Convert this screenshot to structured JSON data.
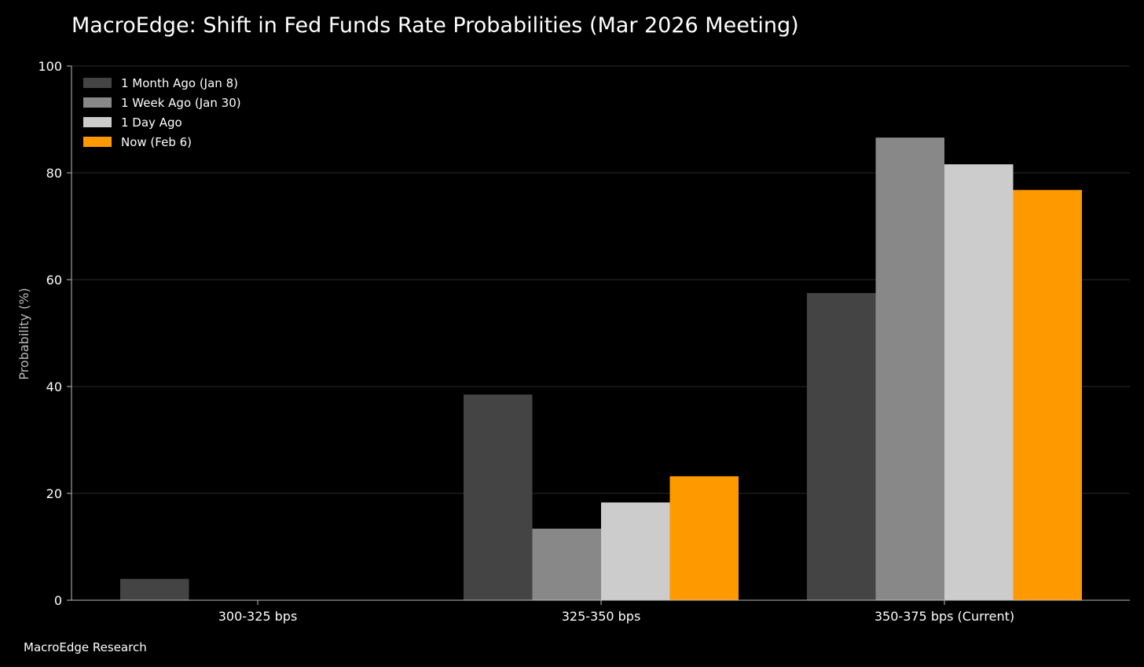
{
  "chart_data": {
    "type": "bar",
    "title": "MacroEdge: Shift in Fed Funds Rate Probabilities (Mar 2026 Meeting)",
    "xlabel": "",
    "ylabel": "Probability (%)",
    "ylim": [
      0,
      100
    ],
    "yticks": [
      0,
      20,
      40,
      60,
      80,
      100
    ],
    "grid": true,
    "legend_position": "top-left",
    "categories": [
      "300-325 bps",
      "325-350 bps",
      "350-375 bps (Current)"
    ],
    "series": [
      {
        "name": "1 Month Ago (Jan 8)",
        "color": "#444444",
        "values": [
          4,
          38.5,
          57.5
        ]
      },
      {
        "name": "1 Week Ago (Jan 30)",
        "color": "#888888",
        "values": [
          0,
          13.4,
          86.6
        ]
      },
      {
        "name": "1 Day Ago",
        "color": "#cccccc",
        "values": [
          0,
          18.3,
          81.6
        ]
      },
      {
        "name": "Now (Feb 6)",
        "color": "#ff9900",
        "values": [
          0,
          23.2,
          76.8
        ]
      }
    ],
    "source": "MacroEdge Research"
  }
}
